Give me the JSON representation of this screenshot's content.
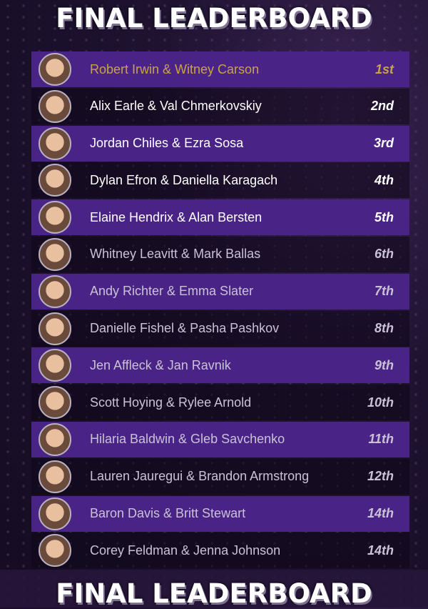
{
  "title": "FINAL LEADERBOARD",
  "colors": {
    "highlight_row": "#4a2386",
    "winner_text": "#c9a24a",
    "top_text": "#ffffff",
    "other_text": "#c9c2d6"
  },
  "rows": [
    {
      "name": "Robert Irwin & Witney Carson",
      "rank": "1st"
    },
    {
      "name": "Alix Earle & Val Chmerkovskiy",
      "rank": "2nd"
    },
    {
      "name": "Jordan Chiles & Ezra Sosa",
      "rank": "3rd"
    },
    {
      "name": "Dylan Efron & Daniella Karagach",
      "rank": "4th"
    },
    {
      "name": "Elaine Hendrix & Alan Bersten",
      "rank": "5th"
    },
    {
      "name": "Whitney Leavitt & Mark Ballas",
      "rank": "6th"
    },
    {
      "name": "Andy Richter & Emma Slater",
      "rank": "7th"
    },
    {
      "name": "Danielle Fishel & Pasha Pashkov",
      "rank": "8th"
    },
    {
      "name": "Jen Affleck & Jan Ravnik",
      "rank": "9th"
    },
    {
      "name": "Scott Hoying & Rylee Arnold",
      "rank": "10th"
    },
    {
      "name": "Hilaria Baldwin & Gleb Savchenko",
      "rank": "11th"
    },
    {
      "name": "Lauren Jauregui & Brandon Armstrong",
      "rank": "12th"
    },
    {
      "name": "Baron Davis & Britt Stewart",
      "rank": "14th"
    },
    {
      "name": "Corey Feldman & Jenna Johnson",
      "rank": "14th"
    }
  ]
}
